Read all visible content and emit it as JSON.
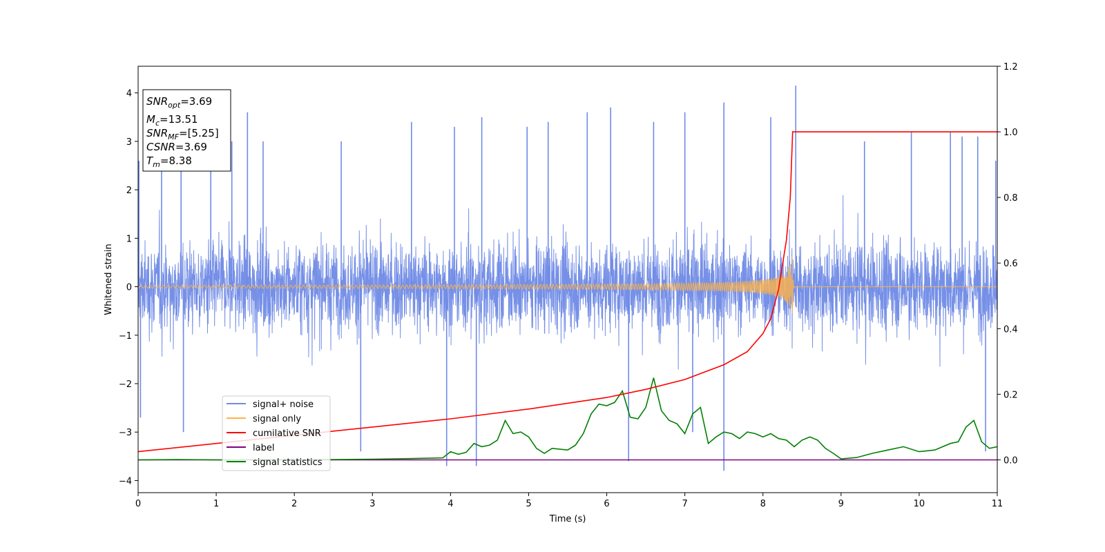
{
  "chart_data": {
    "type": "line",
    "xlabel": "Time (s)",
    "ylabel": "Whitened strain",
    "xlim": [
      0,
      11
    ],
    "ylim": [
      -4.25,
      4.55
    ],
    "y2lim": [
      -0.1,
      1.2
    ],
    "xticks": [
      "0",
      "1",
      "2",
      "3",
      "4",
      "5",
      "6",
      "7",
      "8",
      "9",
      "10",
      "11"
    ],
    "yticks": [
      "−4",
      "−3",
      "−2",
      "−1",
      "0",
      "1",
      "2",
      "3",
      "4"
    ],
    "y2ticks": [
      "0.0",
      "0.2",
      "0.4",
      "0.6",
      "0.8",
      "1.0",
      "1.2"
    ],
    "grid": false,
    "legend_position": "lower-left",
    "legend": [
      "signal+ noise",
      "signal only",
      "cumilative SNR",
      "label",
      "signal statistics"
    ],
    "colors": {
      "signal_noise": "#6f8ae6",
      "signal_only": "#ffb347",
      "cumulative_snr": "#ff0000",
      "label": "#800080",
      "signal_statistics": "#008000"
    },
    "annotation": {
      "snr_opt": "=3.69",
      "mc": "=13.51",
      "snr_mf": "=[5.25]",
      "csnr": "=3.69",
      "tm": "=8.38"
    },
    "signal_plus_noise": {
      "axis": "left",
      "approx_band": [
        -2.2,
        2.2
      ],
      "peaks": [
        [
          0.01,
          2.6
        ],
        [
          0.03,
          -2.7
        ],
        [
          0.3,
          2.6
        ],
        [
          0.55,
          2.5
        ],
        [
          0.58,
          -3.0
        ],
        [
          0.93,
          2.9
        ],
        [
          1.2,
          3.0
        ],
        [
          1.4,
          3.6
        ],
        [
          1.6,
          3.0
        ],
        [
          2.6,
          3.0
        ],
        [
          2.85,
          -3.4
        ],
        [
          3.5,
          3.4
        ],
        [
          3.95,
          -3.7
        ],
        [
          4.05,
          3.3
        ],
        [
          4.33,
          -3.7
        ],
        [
          4.4,
          3.5
        ],
        [
          4.98,
          3.3
        ],
        [
          5.25,
          3.4
        ],
        [
          5.75,
          3.6
        ],
        [
          6.05,
          3.7
        ],
        [
          6.28,
          -3.6
        ],
        [
          6.6,
          3.4
        ],
        [
          7.0,
          3.6
        ],
        [
          7.1,
          -3.0
        ],
        [
          7.5,
          3.8
        ],
        [
          7.5,
          -3.8
        ],
        [
          8.1,
          3.5
        ],
        [
          8.42,
          4.15
        ],
        [
          9.3,
          3.0
        ],
        [
          9.9,
          3.2
        ],
        [
          10.4,
          3.2
        ],
        [
          10.55,
          3.1
        ],
        [
          10.75,
          3.1
        ],
        [
          10.85,
          -3.4
        ],
        [
          10.98,
          2.6
        ]
      ]
    },
    "signal_only": {
      "axis": "left",
      "type": "chirp",
      "merger_time": 8.38,
      "peak_amplitude": 0.78
    },
    "cumulative_snr": {
      "axis": "right",
      "x": [
        0,
        1,
        2,
        3,
        4,
        5,
        6,
        6.5,
        7,
        7.5,
        7.8,
        8.0,
        8.1,
        8.2,
        8.3,
        8.35,
        8.38,
        8.4,
        11
      ],
      "y": [
        0.025,
        0.05,
        0.075,
        0.1,
        0.125,
        0.155,
        0.19,
        0.215,
        0.245,
        0.29,
        0.33,
        0.385,
        0.43,
        0.52,
        0.67,
        0.8,
        1.0,
        1.0,
        1.0
      ]
    },
    "label_series": {
      "axis": "right",
      "x": [
        0,
        11
      ],
      "y": [
        0.0,
        0.0
      ]
    },
    "signal_statistics": {
      "axis": "right",
      "x": [
        0,
        0.5,
        1,
        1.5,
        2,
        2.5,
        3,
        3.5,
        3.9,
        4.0,
        4.1,
        4.2,
        4.3,
        4.4,
        4.5,
        4.6,
        4.7,
        4.8,
        4.9,
        5.0,
        5.1,
        5.2,
        5.3,
        5.5,
        5.6,
        5.7,
        5.8,
        5.9,
        6.0,
        6.1,
        6.2,
        6.3,
        6.4,
        6.5,
        6.6,
        6.7,
        6.8,
        6.9,
        7.0,
        7.1,
        7.2,
        7.3,
        7.4,
        7.5,
        7.6,
        7.7,
        7.8,
        7.9,
        8.0,
        8.1,
        8.2,
        8.3,
        8.4,
        8.5,
        8.6,
        8.7,
        8.8,
        8.9,
        9.0,
        9.2,
        9.4,
        9.6,
        9.8,
        10.0,
        10.2,
        10.4,
        10.5,
        10.6,
        10.7,
        10.8,
        10.9,
        11.0
      ],
      "y": [
        0.0,
        0.001,
        0.0,
        0.0,
        0.001,
        0.001,
        0.002,
        0.004,
        0.006,
        0.025,
        0.017,
        0.023,
        0.05,
        0.04,
        0.045,
        0.06,
        0.12,
        0.08,
        0.085,
        0.07,
        0.035,
        0.02,
        0.035,
        0.03,
        0.045,
        0.08,
        0.14,
        0.17,
        0.165,
        0.175,
        0.21,
        0.13,
        0.125,
        0.16,
        0.25,
        0.15,
        0.12,
        0.11,
        0.08,
        0.14,
        0.16,
        0.05,
        0.07,
        0.085,
        0.08,
        0.065,
        0.085,
        0.08,
        0.07,
        0.08,
        0.065,
        0.06,
        0.04,
        0.06,
        0.07,
        0.06,
        0.035,
        0.02,
        0.003,
        0.007,
        0.02,
        0.03,
        0.04,
        0.025,
        0.03,
        0.05,
        0.055,
        0.1,
        0.12,
        0.055,
        0.035,
        0.04
      ]
    }
  }
}
